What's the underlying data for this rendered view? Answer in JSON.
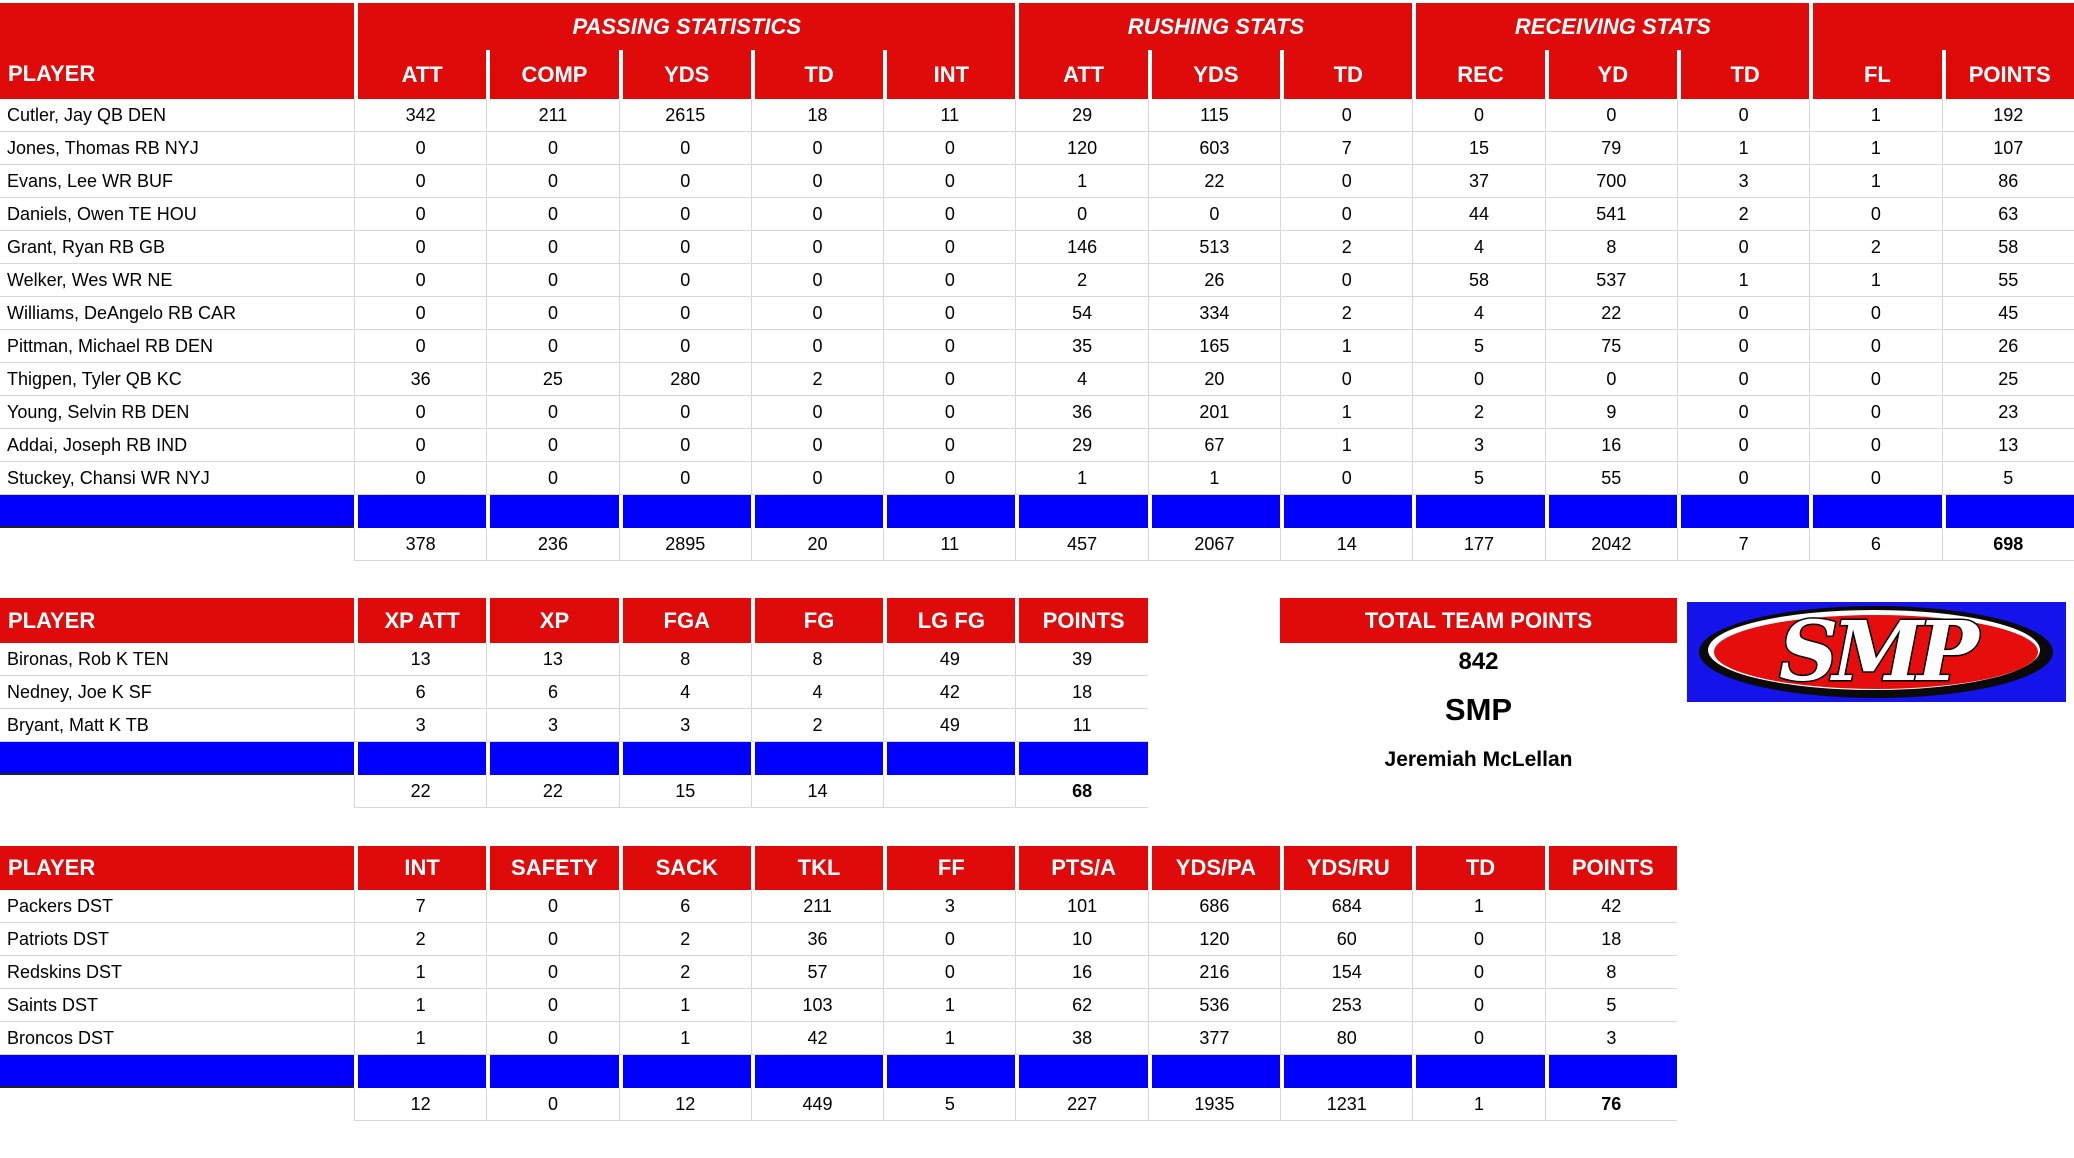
{
  "summary": {
    "label": "TOTAL TEAM POINTS",
    "points": "842",
    "team": "SMP",
    "owner": "Jeremiah McLellan",
    "logo_text": "SMP"
  },
  "colors": {
    "header_red": "#DF0B0B",
    "separator_blue": "#0100FE",
    "gridline_gray": "#D8D8D8",
    "logo_blue": "#1414EA",
    "logo_red": "#E60D0D"
  },
  "tables": {
    "offense": {
      "player_header": "PLAYER",
      "groups": [
        {
          "label": "PASSING STATISTICS",
          "span": 5
        },
        {
          "label": "RUSHING STATS",
          "span": 3
        },
        {
          "label": "RECEIVING STATS",
          "span": 3
        },
        {
          "label": "",
          "span": 2
        }
      ],
      "columns": [
        "ATT",
        "COMP",
        "YDS",
        "TD",
        "INT",
        "ATT",
        "YDS",
        "TD",
        "REC",
        "YD",
        "TD",
        "FL",
        "POINTS"
      ],
      "rows": [
        {
          "player": "Cutler, Jay QB DEN",
          "values": [
            342,
            211,
            2615,
            18,
            11,
            29,
            115,
            0,
            0,
            0,
            0,
            1,
            192
          ]
        },
        {
          "player": "Jones, Thomas RB NYJ",
          "values": [
            0,
            0,
            0,
            0,
            0,
            120,
            603,
            7,
            15,
            79,
            1,
            1,
            107
          ]
        },
        {
          "player": "Evans, Lee WR BUF",
          "values": [
            0,
            0,
            0,
            0,
            0,
            1,
            22,
            0,
            37,
            700,
            3,
            1,
            86
          ]
        },
        {
          "player": "Daniels, Owen TE HOU",
          "values": [
            0,
            0,
            0,
            0,
            0,
            0,
            0,
            0,
            44,
            541,
            2,
            0,
            63
          ]
        },
        {
          "player": "Grant, Ryan RB GB",
          "values": [
            0,
            0,
            0,
            0,
            0,
            146,
            513,
            2,
            4,
            8,
            0,
            2,
            58
          ]
        },
        {
          "player": "Welker, Wes WR NE",
          "values": [
            0,
            0,
            0,
            0,
            0,
            2,
            26,
            0,
            58,
            537,
            1,
            1,
            55
          ]
        },
        {
          "player": "Williams, DeAngelo RB CAR",
          "values": [
            0,
            0,
            0,
            0,
            0,
            54,
            334,
            2,
            4,
            22,
            0,
            0,
            45
          ]
        },
        {
          "player": "Pittman, Michael RB DEN",
          "values": [
            0,
            0,
            0,
            0,
            0,
            35,
            165,
            1,
            5,
            75,
            0,
            0,
            26
          ]
        },
        {
          "player": "Thigpen, Tyler QB KC",
          "values": [
            36,
            25,
            280,
            2,
            0,
            4,
            20,
            0,
            0,
            0,
            0,
            0,
            25
          ]
        },
        {
          "player": "Young, Selvin RB DEN",
          "values": [
            0,
            0,
            0,
            0,
            0,
            36,
            201,
            1,
            2,
            9,
            0,
            0,
            23
          ]
        },
        {
          "player": "Addai, Joseph RB IND",
          "values": [
            0,
            0,
            0,
            0,
            0,
            29,
            67,
            1,
            3,
            16,
            0,
            0,
            13
          ]
        },
        {
          "player": "Stuckey, Chansi WR NYJ",
          "values": [
            0,
            0,
            0,
            0,
            0,
            1,
            1,
            0,
            5,
            55,
            0,
            0,
            5
          ]
        }
      ],
      "totals": [
        378,
        236,
        2895,
        20,
        11,
        457,
        2067,
        14,
        177,
        2042,
        7,
        6,
        698
      ]
    },
    "kickers": {
      "player_header": "PLAYER",
      "columns": [
        "XP ATT",
        "XP",
        "FGA",
        "FG",
        "LG FG",
        "POINTS"
      ],
      "rows": [
        {
          "player": "Bironas, Rob K TEN",
          "values": [
            13,
            13,
            8,
            8,
            49,
            39
          ]
        },
        {
          "player": "Nedney, Joe K SF",
          "values": [
            6,
            6,
            4,
            4,
            42,
            18
          ]
        },
        {
          "player": "Bryant, Matt K TB",
          "values": [
            3,
            3,
            3,
            2,
            49,
            11
          ]
        }
      ],
      "totals": [
        22,
        22,
        15,
        14,
        "",
        68
      ]
    },
    "defense": {
      "player_header": "PLAYER",
      "columns": [
        "INT",
        "SAFETY",
        "SACK",
        "TKL",
        "FF",
        "PTS/A",
        "YDS/PA",
        "YDS/RU",
        "TD",
        "POINTS"
      ],
      "rows": [
        {
          "player": "Packers DST",
          "values": [
            7,
            0,
            6,
            211,
            3,
            101,
            686,
            684,
            1,
            42
          ]
        },
        {
          "player": "Patriots DST",
          "values": [
            2,
            0,
            2,
            36,
            0,
            10,
            120,
            60,
            0,
            18
          ]
        },
        {
          "player": "Redskins DST",
          "values": [
            1,
            0,
            2,
            57,
            0,
            16,
            216,
            154,
            0,
            8
          ]
        },
        {
          "player": "Saints DST",
          "values": [
            1,
            0,
            1,
            103,
            1,
            62,
            536,
            253,
            0,
            5
          ]
        },
        {
          "player": "Broncos DST",
          "values": [
            1,
            0,
            1,
            42,
            1,
            38,
            377,
            80,
            0,
            3
          ]
        }
      ],
      "totals": [
        12,
        0,
        12,
        449,
        5,
        227,
        1935,
        1231,
        1,
        76
      ]
    }
  }
}
